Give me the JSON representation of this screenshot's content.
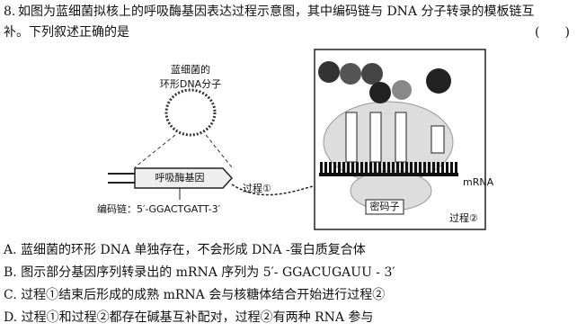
{
  "question": {
    "number": "8.",
    "lines": [
      "如图为蓝细菌拟核上的呼吸酶基因表达过程示意图，其中编码链与 DNA 分子转录的模板链互",
      "补。下列叙述正确的是"
    ],
    "blank": "(　　)"
  },
  "figure": {
    "dna_label_lines": [
      "蓝细菌的",
      "环形DNA分子"
    ],
    "gene": "呼吸酶基因",
    "coding_strand": "编码链：5′-GGACTGATT-3′",
    "process1": "过程①",
    "mrna": "mRNA",
    "codon": "密码子",
    "process2": "过程②"
  },
  "options": [
    "A. 蓝细菌的环形 DNA 单独存在，不会形成 DNA -蛋白质复合体",
    "B. 图示部分基因序列转录出的 mRNA 序列为 5′- GGACUGAUU - 3′",
    "C. 过程①结束后形成的成熟 mRNA 会与核糖体结合开始进行过程②",
    "D. 过程①和过程②都存在碱基互补配对，过程②有两种 RNA 参与"
  ]
}
